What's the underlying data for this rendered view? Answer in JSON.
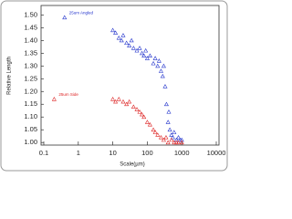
{
  "chart_data": {
    "type": "scatter",
    "x_label": "Scale(µm)",
    "y_label": "Relative Length",
    "xscale": "log",
    "xlim": [
      0.1,
      10000
    ],
    "xticks": [
      0.1,
      1,
      10,
      100,
      1000,
      10000
    ],
    "ylim": [
      0.99,
      1.53
    ],
    "yticks": [
      {
        "value": 1,
        "label": "1.00"
      },
      {
        "value": 1.05,
        "label": "1.05"
      },
      {
        "value": 1.1,
        "label": "1.10"
      },
      {
        "value": 1.15,
        "label": "1.15"
      },
      {
        "value": 1.2,
        "label": "1.20"
      },
      {
        "value": 1.25,
        "label": "1.25"
      },
      {
        "value": 1.3,
        "label": "1.30"
      },
      {
        "value": 1.35,
        "label": "1.35"
      },
      {
        "value": 1.4,
        "label": "1.40"
      },
      {
        "value": 1.45,
        "label": "1.45"
      },
      {
        "value": 1.5,
        "label": "1.50"
      }
    ],
    "series": [
      {
        "name": "25um Angled",
        "color": "#2233cc",
        "x": [
          0.4,
          10,
          12,
          15,
          18,
          20,
          25,
          30,
          35,
          40,
          50,
          60,
          70,
          80,
          90,
          100,
          120,
          150,
          170,
          200,
          220,
          250,
          280,
          300,
          330,
          360,
          400,
          420,
          450,
          500,
          550,
          600,
          700,
          800,
          900,
          1000
        ],
        "values": [
          1.49,
          1.44,
          1.43,
          1.41,
          1.4,
          1.42,
          1.39,
          1.38,
          1.4,
          1.37,
          1.36,
          1.37,
          1.35,
          1.34,
          1.36,
          1.33,
          1.34,
          1.31,
          1.33,
          1.3,
          1.32,
          1.28,
          1.26,
          1.3,
          1.22,
          1.15,
          1.08,
          1.12,
          1.05,
          1.03,
          1.02,
          1.04,
          1.01,
          1.02,
          1.01,
          1.01
        ]
      },
      {
        "name": "25um Side",
        "color": "#dd2222",
        "x": [
          0.2,
          10,
          12,
          15,
          20,
          25,
          30,
          40,
          50,
          60,
          70,
          80,
          100,
          120,
          150,
          170,
          200,
          250,
          300,
          350,
          400,
          500,
          600,
          700,
          800,
          1000
        ],
        "values": [
          1.17,
          1.17,
          1.16,
          1.17,
          1.16,
          1.15,
          1.16,
          1.14,
          1.13,
          1.12,
          1.11,
          1.1,
          1.08,
          1.07,
          1.05,
          1.04,
          1.03,
          1.02,
          1.01,
          1.02,
          1,
          1.01,
          1,
          1,
          1,
          1
        ]
      }
    ]
  }
}
